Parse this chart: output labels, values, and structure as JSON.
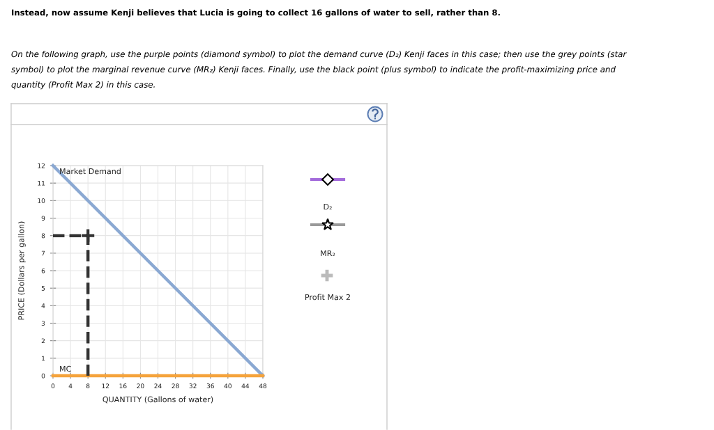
{
  "chart_data": {
    "type": "line",
    "title": "Instead, now assume Kenji believes that Lucia is going to collect 16 gallons of water to sell, rather than 8.",
    "subtitle": "On the following graph, use the purple points (diamond symbol) to plot the demand curve (D₂) Kenji faces in this case; then use the grey points (star symbol) to plot the marginal revenue curve (MR₂) Kenji faces. Finally, use the black point (plus symbol) to indicate the profit-maximizing price and quantity (Profit Max 2) in this case.",
    "xlabel": "QUANTITY (Gallons of water)",
    "ylabel": "PRICE (Dollars per gallon)",
    "xlim": [
      0,
      48
    ],
    "ylim": [
      0,
      12
    ],
    "xticks": [
      0,
      4,
      8,
      12,
      16,
      20,
      24,
      28,
      32,
      36,
      40,
      44,
      48
    ],
    "yticks": [
      0,
      1,
      2,
      3,
      4,
      5,
      6,
      7,
      8,
      9,
      10,
      11,
      12
    ],
    "grid": true,
    "series": [
      {
        "name": "Market Demand",
        "color": "#8aa8d2",
        "x": [
          0,
          48
        ],
        "values": [
          12,
          0
        ]
      },
      {
        "name": "MC",
        "color": "#f5a33c",
        "x": [
          0,
          48
        ],
        "values": [
          0,
          0
        ]
      },
      {
        "color": "#333333",
        "x": [
          0,
          8,
          8
        ],
        "values": [
          8,
          8,
          0
        ],
        "line_style": "dashed"
      },
      {
        "type": "scatter",
        "color": "#333333",
        "x": [
          8
        ],
        "values": [
          8
        ],
        "marker": "cross"
      }
    ],
    "annotations": [
      "D₂",
      "MR₂",
      "Profit Max 2"
    ]
  }
}
